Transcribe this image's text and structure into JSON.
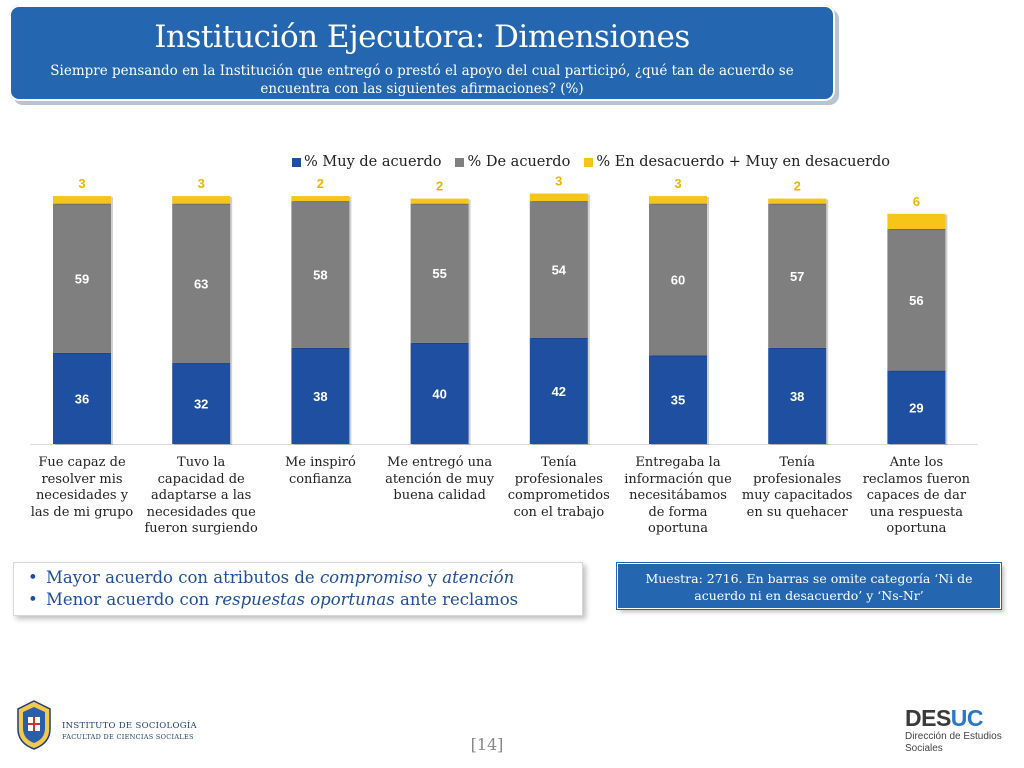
{
  "header": {
    "title": "Institución Ejecutora: Dimensiones",
    "subtitle": "Siempre pensando en la Institución que entregó o prestó el apoyo del cual participó, ¿qué tan de acuerdo se encuentra con las siguientes afirmaciones? (%)"
  },
  "colors": {
    "header_bg": "#2466b0",
    "series_muy_de_acuerdo": "#1f4fa0",
    "series_de_acuerdo": "#7f7f7f",
    "series_desacuerdo": "#f5c518",
    "bullet_text": "#1f4f9a"
  },
  "chart_data": {
    "type": "bar",
    "stacked": true,
    "categories": [
      "Fue capaz de resolver mis necesidades y las de mi grupo",
      "Tuvo la capacidad de adaptarse a las necesidades que fueron surgiendo",
      "Me inspiró confianza",
      "Me entregó una atención de muy buena calidad",
      "Tenía profesionales comprometidos con el trabajo",
      "Entregaba la información que necesitábamos de forma oportuna",
      "Tenía profesionales muy capacitados en su quehacer",
      "Ante los reclamos fueron capaces de dar una respuesta oportuna"
    ],
    "category_lines": [
      [
        "Fue capaz de",
        "resolver mis",
        "necesidades y",
        "las de mi grupo"
      ],
      [
        "Tuvo la",
        "capacidad de",
        "adaptarse a las",
        "necesidades que",
        "fueron surgiendo"
      ],
      [
        "Me inspiró",
        "confianza"
      ],
      [
        "Me entregó una",
        "atención de muy",
        "buena calidad"
      ],
      [
        "Tenía",
        "profesionales",
        "comprometidos",
        "con el trabajo"
      ],
      [
        "Entregaba la",
        "información que",
        "necesitábamos",
        "de forma",
        "oportuna"
      ],
      [
        "Tenía",
        "profesionales",
        "muy capacitados",
        "en su quehacer"
      ],
      [
        "Ante los",
        "reclamos fueron",
        "capaces de dar",
        "una respuesta",
        "oportuna"
      ]
    ],
    "series": [
      {
        "name": "% Muy de acuerdo",
        "color": "#1f4fa0",
        "values": [
          36,
          32,
          38,
          40,
          42,
          35,
          38,
          29
        ]
      },
      {
        "name": "% De acuerdo",
        "color": "#7f7f7f",
        "values": [
          59,
          63,
          58,
          55,
          54,
          60,
          57,
          56
        ]
      },
      {
        "name": "% En desacuerdo + Muy en desacuerdo",
        "color": "#f5c518",
        "values": [
          3,
          3,
          2,
          2,
          3,
          3,
          2,
          6
        ]
      }
    ],
    "legend_position": "top-right",
    "grid": false
  },
  "bullets": [
    {
      "parts": [
        {
          "text": "Mayor acuerdo con atributos de ",
          "italic": false
        },
        {
          "text": "compromiso",
          "italic": true
        },
        {
          "text": " y ",
          "italic": false
        },
        {
          "text": "atención",
          "italic": true
        }
      ]
    },
    {
      "parts": [
        {
          "text": "Menor acuerdo con ",
          "italic": false
        },
        {
          "text": "respuestas oportunas",
          "italic": true
        },
        {
          "text": " ante reclamos",
          "italic": false
        }
      ]
    }
  ],
  "bullet_marker": "•",
  "note": "Muestra: 2716. En barras se omite categoría ‘Ni de acuerdo ni en desacuerdo’ y ‘Ns-Nr’",
  "footer": {
    "institute_line1": "INSTITUTO DE SOCIOLOGÍA",
    "institute_line2": "FACULTAD DE CIENCIAS SOCIALES",
    "page_number": "[14]",
    "brand_part1": "DES",
    "brand_part2": "UC",
    "brand_sub1": "Dirección de Estudios",
    "brand_sub2": "Sociales"
  }
}
